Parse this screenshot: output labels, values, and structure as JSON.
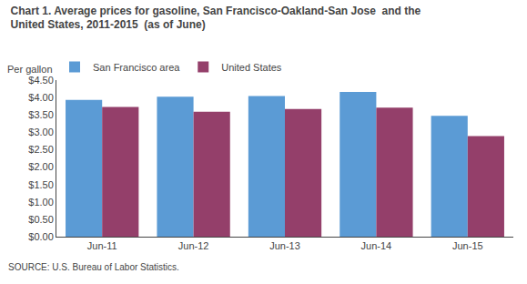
{
  "chart_data": {
    "type": "bar",
    "title": "Chart 1. Average prices for gasoline, San Francisco-Oakland-San Jose  and the\nUnited States, 2011-2015  (as of June)",
    "ylabel": "Per gallon",
    "annotations": [
      {
        "text": "SOURCE: U.S. Bureau of Labor Statistics."
      }
    ],
    "categories": [
      "Jun-11",
      "Jun-12",
      "Jun-13",
      "Jun-14",
      "Jun-15"
    ],
    "series": [
      {
        "name": "San Francisco area",
        "color": "#5B9BD5",
        "values": [
          3.93,
          4.02,
          4.04,
          4.16,
          3.47
        ]
      },
      {
        "name": "United States",
        "color": "#943F6A",
        "values": [
          3.73,
          3.59,
          3.67,
          3.71,
          2.89
        ]
      }
    ],
    "ylim": [
      0,
      4.5
    ],
    "yticks": [
      {
        "value": 0.0,
        "label": "$0.00"
      },
      {
        "value": 0.5,
        "label": "$0.50"
      },
      {
        "value": 1.0,
        "label": "$1.00"
      },
      {
        "value": 1.5,
        "label": "$1.50"
      },
      {
        "value": 2.0,
        "label": "$2.00"
      },
      {
        "value": 2.5,
        "label": "$2.50"
      },
      {
        "value": 3.0,
        "label": "$3.00"
      },
      {
        "value": 3.5,
        "label": "$3.50"
      },
      {
        "value": 4.0,
        "label": "$4.00"
      },
      {
        "value": 4.5,
        "label": "$4.50"
      }
    ],
    "grid": false,
    "legend": "upper left"
  }
}
